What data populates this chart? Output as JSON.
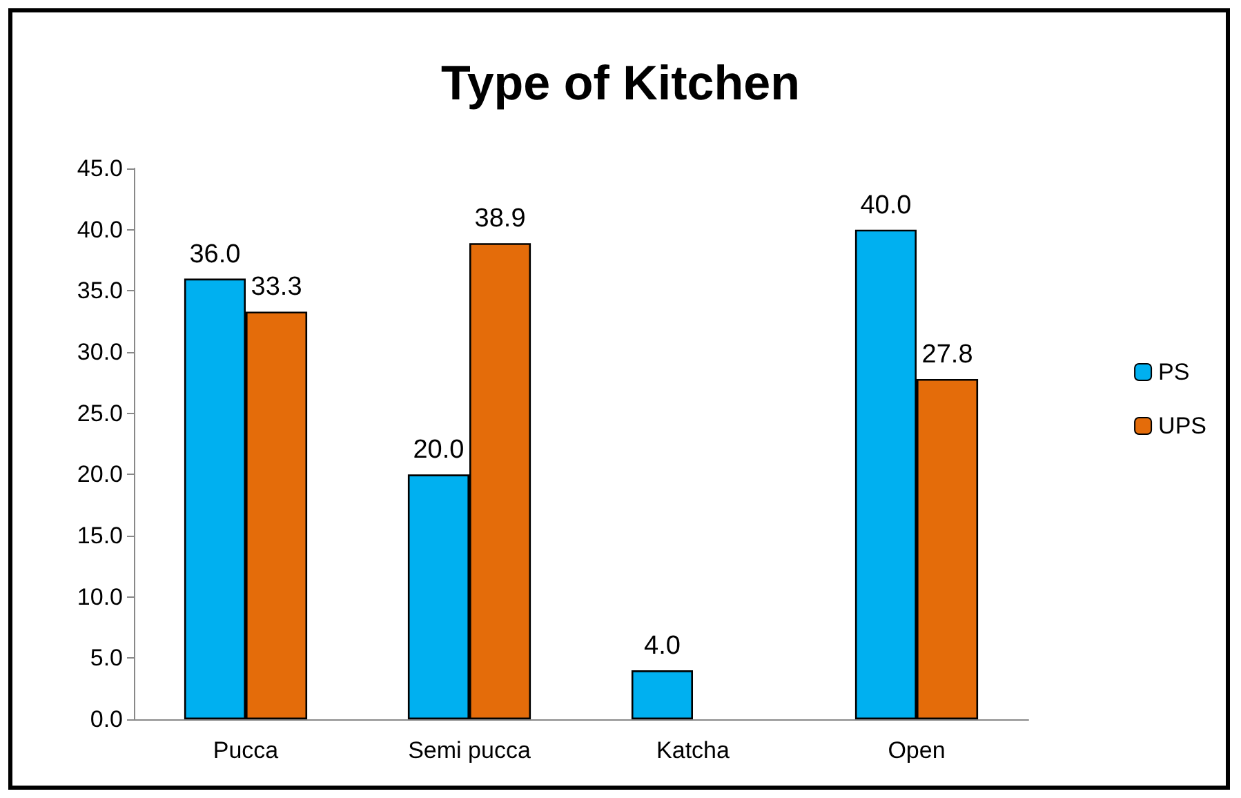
{
  "chart_data": {
    "type": "bar",
    "title": "Type of Kitchen",
    "categories": [
      "Pucca",
      "Semi pucca",
      "Katcha",
      "Open"
    ],
    "series": [
      {
        "name": "PS",
        "color": "#00b0f0",
        "values": [
          36.0,
          20.0,
          4.0,
          40.0
        ],
        "value_labels": [
          "36.0",
          "20.0",
          "4.0",
          "40.0"
        ]
      },
      {
        "name": "UPS",
        "color": "#e46c0a",
        "values": [
          33.3,
          38.9,
          null,
          27.8
        ],
        "value_labels": [
          "33.3",
          "38.9",
          null,
          "27.8"
        ]
      }
    ],
    "ylim": [
      0,
      45
    ],
    "yticks": [
      {
        "value": 0,
        "label": "0.0"
      },
      {
        "value": 5,
        "label": "5.0"
      },
      {
        "value": 10,
        "label": "10.0"
      },
      {
        "value": 15,
        "label": "15.0"
      },
      {
        "value": 20,
        "label": "20.0"
      },
      {
        "value": 25,
        "label": "25.0"
      },
      {
        "value": 30,
        "label": "30.0"
      },
      {
        "value": 35,
        "label": "35.0"
      },
      {
        "value": 40,
        "label": "40.0"
      },
      {
        "value": 45,
        "label": "45.0"
      }
    ],
    "grid": false,
    "legend": "right"
  }
}
